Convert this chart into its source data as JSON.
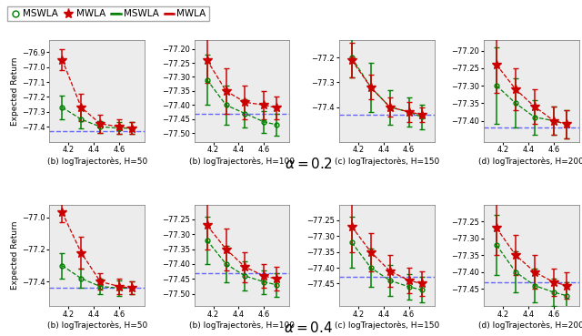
{
  "x_vals": [
    4.15,
    4.3,
    4.45,
    4.6,
    4.7
  ],
  "rows": [
    {
      "alpha_label": "$\\alpha = 0.2$",
      "subplots": [
        {
          "title": "(b) logTrajectorès, H=50",
          "ylim": [
            -77.5,
            -76.82
          ],
          "yticks": [
            -77.4,
            -77.3,
            -77.2,
            -77.1,
            -77.0,
            -76.9
          ],
          "ylabel": "Expected Return",
          "mswla_y": [
            -77.27,
            -77.35,
            -77.4,
            -77.41,
            -77.41
          ],
          "mswla_err": [
            0.08,
            0.06,
            0.04,
            0.04,
            0.04
          ],
          "mwla_y": [
            -76.95,
            -77.27,
            -77.38,
            -77.4,
            -77.41
          ],
          "mwla_err": [
            0.07,
            0.09,
            0.06,
            0.05,
            0.04
          ],
          "baseline": -77.43
        },
        {
          "title": "(b) logTrajectorès, H=100",
          "ylim": [
            -77.53,
            -77.17
          ],
          "yticks": [
            -77.5,
            -77.45,
            -77.4,
            -77.35,
            -77.3,
            -77.25,
            -77.2
          ],
          "ylabel": null,
          "mswla_y": [
            -77.31,
            -77.4,
            -77.43,
            -77.46,
            -77.47
          ],
          "mswla_err": [
            0.09,
            0.07,
            0.05,
            0.04,
            0.04
          ],
          "mwla_y": [
            -77.24,
            -77.35,
            -77.39,
            -77.4,
            -77.41
          ],
          "mwla_err": [
            0.08,
            0.08,
            0.06,
            0.05,
            0.04
          ],
          "baseline": -77.43
        },
        {
          "title": "(c) logTrajectorès, H=150",
          "ylim": [
            -77.54,
            -77.13
          ],
          "yticks": [
            -77.4,
            -77.3,
            -77.2
          ],
          "ylabel": null,
          "mswla_y": [
            -77.2,
            -77.32,
            -77.4,
            -77.42,
            -77.44
          ],
          "mswla_err": [
            0.08,
            0.1,
            0.07,
            0.06,
            0.05
          ],
          "mwla_y": [
            -77.21,
            -77.32,
            -77.4,
            -77.42,
            -77.43
          ],
          "mwla_err": [
            0.07,
            0.05,
            0.04,
            0.04,
            0.03
          ],
          "baseline": -77.43
        },
        {
          "title": "(d) logTrajectorès, H=200",
          "ylim": [
            -77.46,
            -77.17
          ],
          "yticks": [
            -77.4,
            -77.35,
            -77.3,
            -77.25,
            -77.2
          ],
          "ylabel": null,
          "mswla_y": [
            -77.3,
            -77.35,
            -77.39,
            -77.4,
            -77.41
          ],
          "mswla_err": [
            0.11,
            0.07,
            0.05,
            0.04,
            0.04
          ],
          "mwla_y": [
            -77.24,
            -77.31,
            -77.36,
            -77.4,
            -77.41
          ],
          "mwla_err": [
            0.08,
            0.06,
            0.05,
            0.04,
            0.04
          ],
          "baseline": -77.42
        }
      ]
    },
    {
      "alpha_label": "$\\alpha = 0.4$",
      "subplots": [
        {
          "title": "(b) logTrajectorès, H=50",
          "ylim": [
            -77.55,
            -76.92
          ],
          "yticks": [
            -77.4,
            -77.2,
            -77.0
          ],
          "ylabel": "Expected Return",
          "mswla_y": [
            -77.3,
            -77.38,
            -77.43,
            -77.44,
            -77.44
          ],
          "mswla_err": [
            0.08,
            0.06,
            0.05,
            0.05,
            0.04
          ],
          "mwla_y": [
            -76.97,
            -77.22,
            -77.4,
            -77.43,
            -77.44
          ],
          "mwla_err": [
            0.06,
            0.1,
            0.05,
            0.05,
            0.04
          ],
          "baseline": -77.44
        },
        {
          "title": "(b) logTrajectorès, H=100",
          "ylim": [
            -77.54,
            -77.2
          ],
          "yticks": [
            -77.5,
            -77.45,
            -77.4,
            -77.35,
            -77.3,
            -77.25
          ],
          "ylabel": null,
          "mswla_y": [
            -77.32,
            -77.4,
            -77.44,
            -77.46,
            -77.47
          ],
          "mswla_err": [
            0.08,
            0.06,
            0.05,
            0.04,
            0.04
          ],
          "mwla_y": [
            -77.27,
            -77.35,
            -77.41,
            -77.44,
            -77.45
          ],
          "mwla_err": [
            0.08,
            0.07,
            0.05,
            0.04,
            0.04
          ],
          "baseline": -77.43
        },
        {
          "title": "(c) logTrajectorès, H=150",
          "ylim": [
            -77.52,
            -77.2
          ],
          "yticks": [
            -77.45,
            -77.4,
            -77.35,
            -77.3,
            -77.25
          ],
          "ylabel": null,
          "mswla_y": [
            -77.32,
            -77.4,
            -77.44,
            -77.46,
            -77.47
          ],
          "mswla_err": [
            0.08,
            0.06,
            0.05,
            0.04,
            0.04
          ],
          "mwla_y": [
            -77.27,
            -77.35,
            -77.41,
            -77.44,
            -77.45
          ],
          "mwla_err": [
            0.08,
            0.06,
            0.05,
            0.04,
            0.04
          ],
          "baseline": -77.43
        },
        {
          "title": "(d) logTrajectorès, H=200",
          "ylim": [
            -77.5,
            -77.2
          ],
          "yticks": [
            -77.45,
            -77.4,
            -77.35,
            -77.3,
            -77.25
          ],
          "ylabel": null,
          "mswla_y": [
            -77.32,
            -77.4,
            -77.44,
            -77.46,
            -77.47
          ],
          "mswla_err": [
            0.09,
            0.06,
            0.05,
            0.04,
            0.04
          ],
          "mwla_y": [
            -77.27,
            -77.35,
            -77.4,
            -77.43,
            -77.44
          ],
          "mwla_err": [
            0.08,
            0.06,
            0.05,
            0.04,
            0.04
          ],
          "baseline": -77.43
        }
      ]
    }
  ],
  "color_mswla": "#008000",
  "color_mwla": "#cc0000",
  "color_baseline": "#4444ff",
  "tick_fontsize": 6.0,
  "label_fontsize": 6.5,
  "title_fontsize": 6.5,
  "alpha_fontsize": 11,
  "legend_fontsize": 7.5
}
